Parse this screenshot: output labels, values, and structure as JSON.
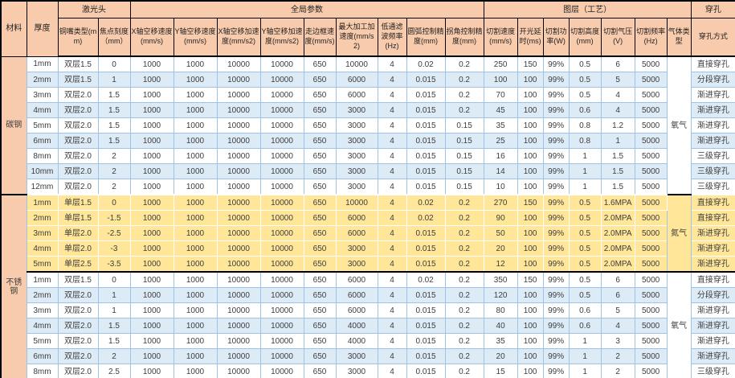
{
  "colors": {
    "header_bg": "#F8CBAD",
    "row_white": "#FFFFFF",
    "row_blue": "#DDEBF7",
    "row_yellow": "#FFE699",
    "cut_speed_col": "#A9D08E",
    "grid_blue": "#9DC3E6",
    "frame": "#000000"
  },
  "table": {
    "header": {
      "groups": [
        {
          "key": "material",
          "label": "材料",
          "rowspan": 2,
          "colspan": 1
        },
        {
          "key": "thickness",
          "label": "厚度",
          "rowspan": 2,
          "colspan": 1
        },
        {
          "key": "laser-head",
          "label": "激光头",
          "rowspan": 1,
          "colspan": 2
        },
        {
          "key": "global-params",
          "label": "全局参数",
          "rowspan": 1,
          "colspan": 9
        },
        {
          "key": "layer-process",
          "label": "图层（工艺）",
          "rowspan": 1,
          "colspan": 7
        },
        {
          "key": "piercing",
          "label": "穿孔",
          "rowspan": 1,
          "colspan": 1
        }
      ],
      "columns": [
        {
          "key": "nozzle-type",
          "label": "铜嘴类型(mm)"
        },
        {
          "key": "focus-scale",
          "label": "焦点刻度（mm）"
        },
        {
          "key": "x-idle-speed",
          "label": "X轴空移速度(mm/s)"
        },
        {
          "key": "y-idle-speed",
          "label": "Y轴空移速度(mm/s)"
        },
        {
          "key": "x-idle-accel",
          "label": "X轴空移加速度(mm/s2)"
        },
        {
          "key": "y-idle-accel",
          "label": "Y轴空移加速度(mm/s2)"
        },
        {
          "key": "frame-speed",
          "label": "走边框速度(mm/s)"
        },
        {
          "key": "max-work-accel",
          "label": "最大加工加速度(mm/s2)"
        },
        {
          "key": "low-pass-freq",
          "label": "低通滤波频率(Hz)"
        },
        {
          "key": "arc-precision",
          "label": "圆弧控制精度(mm)"
        },
        {
          "key": "corner-precision",
          "label": "拐角控制精度(mm)"
        },
        {
          "key": "cut-speed",
          "label": "切割速度(mm/s)"
        },
        {
          "key": "laser-on-delay",
          "label": "开光延时(ms)"
        },
        {
          "key": "cut-power",
          "label": "切割功率(W)"
        },
        {
          "key": "cut-height",
          "label": "切割高度(mm)"
        },
        {
          "key": "cut-pressure",
          "label": "切割气压(V)"
        },
        {
          "key": "cut-freq",
          "label": "切割频率(Hz)"
        },
        {
          "key": "gas-type",
          "label": "气体类型"
        },
        {
          "key": "pierce-mode",
          "label": "穿孔方式"
        }
      ]
    },
    "sections": [
      {
        "material": "碳钢",
        "material_rowspan": 9,
        "gas": "氧气",
        "theme": "blue",
        "rows": [
          [
            "1mm",
            "双层1.5",
            "0",
            "1000",
            "1000",
            "10000",
            "10000",
            "650",
            "10000",
            "4",
            "0.02",
            "0.2",
            "250",
            "150",
            "99%",
            "0.5",
            "6",
            "5000",
            "直接穿孔"
          ],
          [
            "2mm",
            "双层1.5",
            "1",
            "1000",
            "1000",
            "10000",
            "10000",
            "650",
            "6000",
            "4",
            "0.015",
            "0.2",
            "100",
            "100",
            "99%",
            "0.5",
            "5",
            "5000",
            "分段穿孔"
          ],
          [
            "3mm",
            "双层2.0",
            "1.5",
            "1000",
            "1000",
            "10000",
            "10000",
            "650",
            "6000",
            "4",
            "0.015",
            "0.2",
            "70",
            "100",
            "99%",
            "0.5",
            "4",
            "5000",
            "渐进穿孔"
          ],
          [
            "4mm",
            "双层2.0",
            "1.5",
            "1000",
            "1000",
            "10000",
            "10000",
            "650",
            "3000",
            "4",
            "0.015",
            "0.2",
            "45",
            "100",
            "99%",
            "0.6",
            "4",
            "5000",
            "渐进穿孔"
          ],
          [
            "5mm",
            "双层2.0",
            "1.5",
            "1000",
            "1000",
            "10000",
            "10000",
            "650",
            "3000",
            "4",
            "0.015",
            "0.15",
            "35",
            "100",
            "99%",
            "0.8",
            "1.2",
            "5000",
            "渐进穿孔"
          ],
          [
            "6mm",
            "双层2.0",
            "1.5",
            "1000",
            "1000",
            "10000",
            "10000",
            "650",
            "3000",
            "4",
            "0.015",
            "0.15",
            "25",
            "100",
            "99%",
            "0.8",
            "1",
            "5000",
            "渐进穿孔"
          ],
          [
            "8mm",
            "双层2.0",
            "2",
            "1000",
            "1000",
            "10000",
            "10000",
            "650",
            "3000",
            "4",
            "0.015",
            "0.15",
            "16",
            "100",
            "99%",
            "1",
            "1.5",
            "5000",
            "三级穿孔"
          ],
          [
            "10mm",
            "双层2.0",
            "2",
            "1000",
            "1000",
            "10000",
            "10000",
            "650",
            "3000",
            "4",
            "0.015",
            "0.15",
            "14",
            "100",
            "99%",
            "1",
            "1.5",
            "5000",
            "三级穿孔"
          ],
          [
            "12mm",
            "双层2.0",
            "2",
            "1000",
            "1000",
            "10000",
            "10000",
            "650",
            "3000",
            "4",
            "0.015",
            "0.15",
            "10",
            "100",
            "99%",
            "1",
            "1.5",
            "5000",
            "三级穿孔"
          ]
        ]
      },
      {
        "material": "不锈钢",
        "material_rowspan": 12,
        "gas": "氮气",
        "theme": "yellow",
        "rows": [
          [
            "1mm",
            "单层1.5",
            "0",
            "1000",
            "1000",
            "10000",
            "10000",
            "650",
            "10000",
            "4",
            "0.02",
            "0.2",
            "270",
            "150",
            "99%",
            "0.5",
            "1.6MPA",
            "5000",
            "直接穿孔"
          ],
          [
            "2mm",
            "单层1.5",
            "-1.5",
            "1000",
            "1000",
            "10000",
            "10000",
            "650",
            "6000",
            "4",
            "0.02",
            "0.2",
            "90",
            "100",
            "99%",
            "0.5",
            "2.0MPA",
            "5000",
            "直接穿孔"
          ],
          [
            "3mm",
            "单层2.0",
            "-2.5",
            "1000",
            "1000",
            "10000",
            "10000",
            "650",
            "6000",
            "4",
            "0.015",
            "0.2",
            "50",
            "100",
            "99%",
            "0.5",
            "2.0MPA",
            "5000",
            "渐进穿孔"
          ],
          [
            "4mm",
            "单层2.0",
            "-3",
            "1000",
            "1000",
            "10000",
            "10000",
            "650",
            "3000",
            "4",
            "0.015",
            "0.2",
            "20",
            "100",
            "99%",
            "0.5",
            "2.0MPA",
            "5000",
            "渐进穿孔"
          ],
          [
            "5mm",
            "单层2.5",
            "-3.5",
            "1000",
            "1000",
            "10000",
            "10000",
            "650",
            "3000",
            "4",
            "0.015",
            "0.2",
            "12",
            "100",
            "99%",
            "0.5",
            "2.0MPA",
            "5000",
            "渐进穿孔"
          ]
        ]
      },
      {
        "material": null,
        "material_rowspan": 0,
        "gas": "氧气",
        "theme": "blue",
        "rows": [
          [
            "1mm",
            "双层1.5",
            "0",
            "1000",
            "1000",
            "10000",
            "10000",
            "650",
            "6000",
            "4",
            "0.02",
            "0.2",
            "350",
            "150",
            "99%",
            "0.5",
            "6",
            "5000",
            "直接穿孔"
          ],
          [
            "2mm",
            "双层2.0",
            "1",
            "1000",
            "1000",
            "10000",
            "10000",
            "650",
            "6000",
            "4",
            "0.015",
            "0.2",
            "120",
            "100",
            "99%",
            "0.5",
            "6",
            "5000",
            "分段穿孔"
          ],
          [
            "3mm",
            "双层2.0",
            "1",
            "1000",
            "1000",
            "10000",
            "10000",
            "650",
            "6000",
            "4",
            "0.015",
            "0.2",
            "80",
            "100",
            "99%",
            "0.6",
            "5",
            "5000",
            "渐进穿孔"
          ],
          [
            "4mm",
            "双层2.0",
            "1.5",
            "1000",
            "1000",
            "10000",
            "10000",
            "650",
            "4000",
            "4",
            "0.015",
            "0.2",
            "40",
            "100",
            "99%",
            "0.6",
            "4",
            "5000",
            "渐进穿孔"
          ],
          [
            "5mm",
            "双层2.0",
            "1.5",
            "1000",
            "1000",
            "10000",
            "10000",
            "650",
            "4000",
            "4",
            "0.015",
            "0.2",
            "35",
            "100",
            "99%",
            "1",
            "3",
            "5000",
            "渐进穿孔"
          ],
          [
            "6mm",
            "双层2.0",
            "2",
            "1000",
            "1000",
            "10000",
            "10000",
            "650",
            "3000",
            "4",
            "0.015",
            "0.2",
            "20",
            "100",
            "99%",
            "1",
            "2",
            "5000",
            "渐进穿孔"
          ],
          [
            "8mm",
            "双层2.0",
            "2.5",
            "1000",
            "1000",
            "10000",
            "10000",
            "650",
            "3000",
            "4",
            "0.015",
            "0.2",
            "15",
            "100",
            "99%",
            "1",
            "2",
            "5000",
            "三级穿孔"
          ]
        ]
      }
    ]
  }
}
